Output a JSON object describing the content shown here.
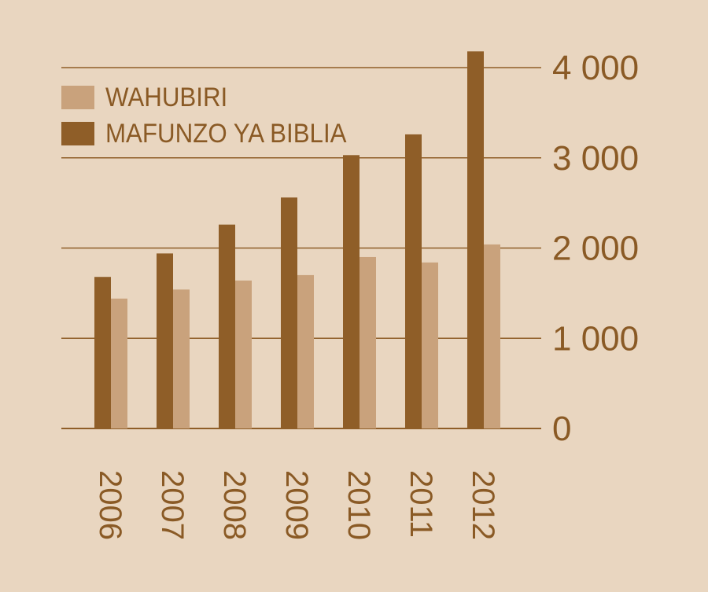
{
  "chart_data": {
    "type": "bar",
    "categories": [
      "2006",
      "2007",
      "2008",
      "2009",
      "2010",
      "2011",
      "2012"
    ],
    "series": [
      {
        "name": "WAHUBIRI",
        "color": "#c9a27c",
        "values": [
          1440,
          1540,
          1640,
          1700,
          1900,
          1840,
          2040
        ]
      },
      {
        "name": "MAFUNZO YA BIBLIA",
        "color": "#8f5e28",
        "values": [
          1680,
          1940,
          2260,
          2560,
          3030,
          3260,
          4180
        ]
      }
    ],
    "y_ticks": [
      0,
      1000,
      2000,
      3000,
      4000
    ],
    "y_tick_labels": [
      "0",
      "1 000",
      "2 000",
      "3 000",
      "4 000"
    ],
    "ylim": [
      0,
      4000
    ],
    "grid": true,
    "legend_position": "top-left",
    "y_axis_side": "right"
  }
}
